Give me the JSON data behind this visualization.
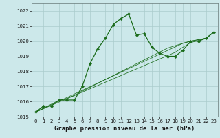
{
  "xlabel": "Graphe pression niveau de la mer (hPa)",
  "bg_color": "#cce8ea",
  "grid_color": "#aacccc",
  "line_color": "#1a6b1a",
  "x": [
    0,
    1,
    2,
    3,
    4,
    5,
    6,
    7,
    8,
    9,
    10,
    11,
    12,
    13,
    14,
    15,
    16,
    17,
    18,
    19,
    20,
    21,
    22,
    23
  ],
  "y_main": [
    1015.3,
    1015.7,
    1015.7,
    1016.1,
    1016.1,
    1016.1,
    1017.0,
    1018.5,
    1019.5,
    1020.2,
    1021.1,
    1021.5,
    1021.8,
    1020.4,
    1020.5,
    1019.6,
    1019.2,
    1019.0,
    1019.0,
    1019.4,
    1020.0,
    1020.0,
    1020.2,
    1020.6
  ],
  "y_trend1": [
    1015.3,
    1015.56,
    1015.82,
    1016.08,
    1016.2,
    1016.42,
    1016.68,
    1016.94,
    1017.2,
    1017.46,
    1017.72,
    1017.98,
    1018.24,
    1018.5,
    1018.76,
    1019.02,
    1019.28,
    1019.54,
    1019.7,
    1019.86,
    1020.0,
    1020.1,
    1020.2,
    1020.6
  ],
  "y_trend2": [
    1015.3,
    1015.54,
    1015.78,
    1016.02,
    1016.26,
    1016.5,
    1016.74,
    1016.98,
    1017.22,
    1017.46,
    1017.7,
    1017.94,
    1018.18,
    1018.42,
    1018.66,
    1018.9,
    1019.14,
    1019.38,
    1019.62,
    1019.86,
    1020.0,
    1020.1,
    1020.2,
    1020.6
  ],
  "y_trend3": [
    1015.3,
    1015.52,
    1015.74,
    1015.96,
    1016.18,
    1016.4,
    1016.62,
    1016.84,
    1017.06,
    1017.28,
    1017.5,
    1017.72,
    1017.94,
    1018.16,
    1018.38,
    1018.6,
    1018.82,
    1019.04,
    1019.26,
    1019.6,
    1019.9,
    1020.05,
    1020.2,
    1020.62
  ],
  "ylim": [
    1015.0,
    1022.5
  ],
  "yticks": [
    1015,
    1016,
    1017,
    1018,
    1019,
    1020,
    1021,
    1022
  ],
  "xticks": [
    0,
    1,
    2,
    3,
    4,
    5,
    6,
    7,
    8,
    9,
    10,
    11,
    12,
    13,
    14,
    15,
    16,
    17,
    18,
    19,
    20,
    21,
    22,
    23
  ],
  "tick_fontsize": 5.0,
  "xlabel_fontsize": 6.5,
  "markersize": 2.2,
  "linewidth": 0.9,
  "trend_linewidth": 0.55
}
